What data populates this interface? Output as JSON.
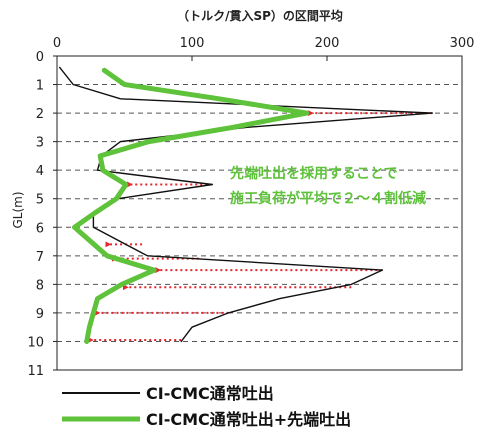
{
  "chart_data": {
    "type": "line",
    "title": "（トルク/貫入SP）の区間平均",
    "xlabel": "",
    "ylabel": "GL(m)",
    "xlim": [
      0,
      300
    ],
    "ylim": [
      0,
      11
    ],
    "x_ticks": [
      "0",
      "100",
      "200",
      "300"
    ],
    "y_ticks": [
      "0",
      "1",
      "2",
      "3",
      "4",
      "5",
      "6",
      "7",
      "8",
      "9",
      "10",
      "11"
    ],
    "grid": "dashed horizontal",
    "legend": "bottom",
    "series": [
      {
        "name": "CI-CMC通常吐出",
        "color": "#111111",
        "points": [
          {
            "x": 2,
            "y": 0.4
          },
          {
            "x": 12,
            "y": 1.0
          },
          {
            "x": 47,
            "y": 1.5
          },
          {
            "x": 278,
            "y": 2.0
          },
          {
            "x": 140,
            "y": 2.5
          },
          {
            "x": 47,
            "y": 3.0
          },
          {
            "x": 33,
            "y": 3.5
          },
          {
            "x": 30,
            "y": 4.0
          },
          {
            "x": 115,
            "y": 4.5
          },
          {
            "x": 45,
            "y": 5.0
          },
          {
            "x": 27,
            "y": 5.5
          },
          {
            "x": 27,
            "y": 6.0
          },
          {
            "x": 67,
            "y": 7.0
          },
          {
            "x": 241,
            "y": 7.5
          },
          {
            "x": 218,
            "y": 8.0
          },
          {
            "x": 165,
            "y": 8.5
          },
          {
            "x": 127,
            "y": 9.0
          },
          {
            "x": 100,
            "y": 9.5
          },
          {
            "x": 92,
            "y": 10.0
          }
        ]
      },
      {
        "name": "CI-CMC通常吐出+先端吐出",
        "color": "#5ec23a",
        "points": [
          {
            "x": 35,
            "y": 0.5
          },
          {
            "x": 50,
            "y": 1.0
          },
          {
            "x": 120,
            "y": 1.5
          },
          {
            "x": 185,
            "y": 2.0
          },
          {
            "x": 130,
            "y": 2.5
          },
          {
            "x": 68,
            "y": 3.0
          },
          {
            "x": 32,
            "y": 3.5
          },
          {
            "x": 34,
            "y": 4.0
          },
          {
            "x": 51,
            "y": 4.5
          },
          {
            "x": 44,
            "y": 5.0
          },
          {
            "x": 28,
            "y": 5.5
          },
          {
            "x": 13,
            "y": 6.0
          },
          {
            "x": 37,
            "y": 7.0
          },
          {
            "x": 72,
            "y": 7.5
          },
          {
            "x": 48,
            "y": 8.0
          },
          {
            "x": 30,
            "y": 8.5
          },
          {
            "x": 27,
            "y": 9.0
          },
          {
            "x": 24,
            "y": 9.5
          },
          {
            "x": 22,
            "y": 10.0
          }
        ]
      }
    ],
    "annotations": {
      "text_lines": [
        "先端吐出を採用することで",
        "施工負荷が平均で２～４割低減"
      ],
      "arrows": [
        {
          "y": 2.0,
          "from_x": 278,
          "to_x": 185
        },
        {
          "y": 4.5,
          "from_x": 115,
          "to_x": 51
        },
        {
          "y": 6.6,
          "from_x": 63,
          "to_x": 35
        },
        {
          "y": 7.1,
          "from_x": 105,
          "to_x": 40
        },
        {
          "y": 7.5,
          "from_x": 241,
          "to_x": 72
        },
        {
          "y": 8.1,
          "from_x": 218,
          "to_x": 48
        },
        {
          "y": 9.0,
          "from_x": 127,
          "to_x": 27
        },
        {
          "y": 9.95,
          "from_x": 92,
          "to_x": 22
        }
      ],
      "arrow_color": "#e8242c"
    }
  }
}
